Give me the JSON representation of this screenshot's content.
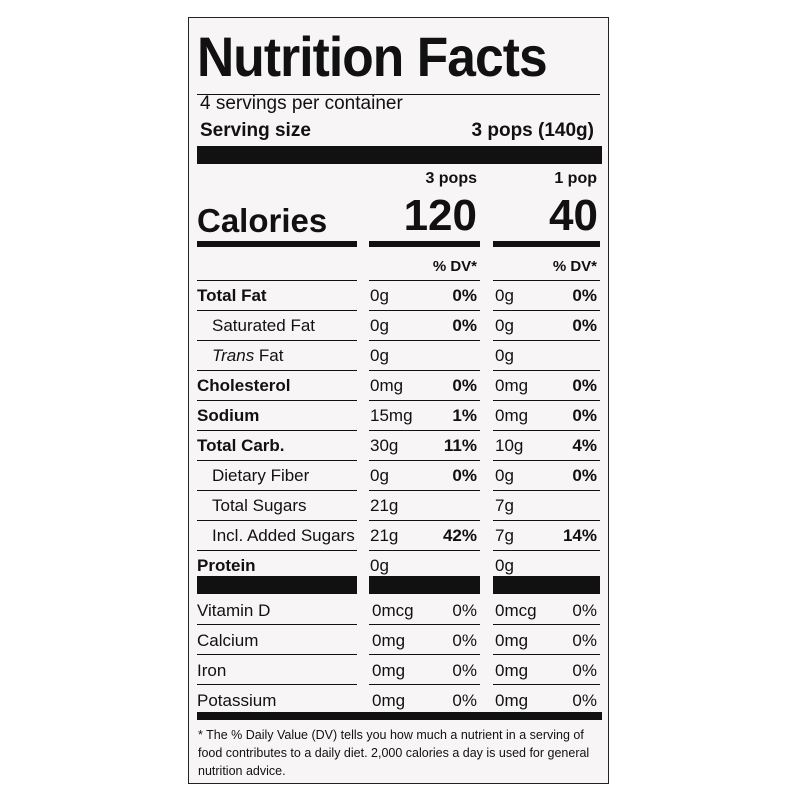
{
  "title": "Nutrition Facts",
  "servings_per_container": "4 servings per container",
  "serving_size": {
    "label": "Serving size",
    "value": "3 pops (140g)"
  },
  "columns": [
    {
      "header": "3 pops",
      "calories": "120"
    },
    {
      "header": "1 pop",
      "calories": "40"
    }
  ],
  "calories_label": "Calories",
  "dv_header": "% DV*",
  "nutrients": [
    {
      "name": "Total Fat",
      "bold": true,
      "indent": false,
      "v1": "0g",
      "dv1": "0%",
      "v2": "0g",
      "dv2": "0%"
    },
    {
      "name": "Saturated Fat",
      "bold": false,
      "indent": true,
      "v1": "0g",
      "dv1": "0%",
      "v2": "0g",
      "dv2": "0%"
    },
    {
      "name_italic": "Trans",
      "name": " Fat",
      "bold": false,
      "indent": true,
      "v1": "0g",
      "dv1": "",
      "v2": "0g",
      "dv2": ""
    },
    {
      "name": "Cholesterol",
      "bold": true,
      "indent": false,
      "v1": "0mg",
      "dv1": "0%",
      "v2": "0mg",
      "dv2": "0%"
    },
    {
      "name": "Sodium",
      "bold": true,
      "indent": false,
      "v1": "15mg",
      "dv1": "1%",
      "v2": "0mg",
      "dv2": "0%"
    },
    {
      "name": "Total Carb.",
      "bold": true,
      "indent": false,
      "v1": "30g",
      "dv1": "11%",
      "v2": "10g",
      "dv2": "4%"
    },
    {
      "name": "Dietary Fiber",
      "bold": false,
      "indent": true,
      "v1": "0g",
      "dv1": "0%",
      "v2": "0g",
      "dv2": "0%"
    },
    {
      "name": "Total Sugars",
      "bold": false,
      "indent": true,
      "v1": "21g",
      "dv1": "",
      "v2": "7g",
      "dv2": ""
    },
    {
      "name": "Incl. Added Sugars",
      "bold": false,
      "indent": true,
      "v1": "21g",
      "dv1": "42%",
      "v2": "7g",
      "dv2": "14%"
    },
    {
      "name": "Protein",
      "bold": true,
      "indent": false,
      "v1": "0g",
      "dv1": "",
      "v2": "0g",
      "dv2": ""
    }
  ],
  "vitamins": [
    {
      "name": "Vitamin D",
      "v1": "0mcg",
      "dv1": "0%",
      "v2": "0mcg",
      "dv2": "0%"
    },
    {
      "name": "Calcium",
      "v1": "0mg",
      "dv1": "0%",
      "v2": "0mg",
      "dv2": "0%"
    },
    {
      "name": "Iron",
      "v1": "0mg",
      "dv1": "0%",
      "v2": "0mg",
      "dv2": "0%"
    },
    {
      "name": "Potassium",
      "v1": "0mg",
      "dv1": "0%",
      "v2": "0mg",
      "dv2": "0%"
    }
  ],
  "footnote": "* The % Daily Value (DV) tells you how much a nutrient in a serving of food contributes to a daily diet. 2,000 calories a day is used for general nutrition advice."
}
